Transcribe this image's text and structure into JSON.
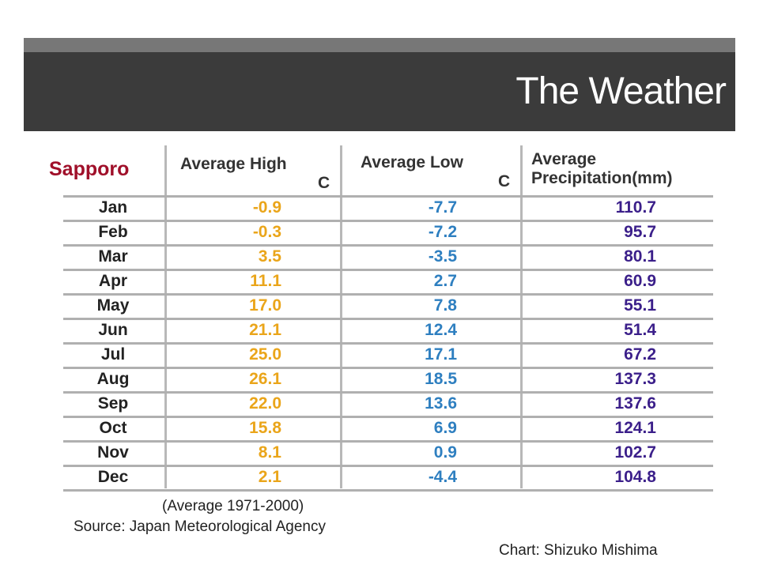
{
  "slide": {
    "title": "The Weather"
  },
  "chart_data": {
    "type": "table",
    "title": "Sapporo",
    "columns": [
      "Average High",
      "Average Low",
      "Average Precipitation(mm)"
    ],
    "unit_high": "C",
    "unit_low": "C",
    "rows": [
      {
        "month": "Jan",
        "high": "-0.9",
        "low": "-7.7",
        "precip": "110.7"
      },
      {
        "month": "Feb",
        "high": "-0.3",
        "low": "-7.2",
        "precip": "95.7"
      },
      {
        "month": "Mar",
        "high": "3.5",
        "low": "-3.5",
        "precip": "80.1"
      },
      {
        "month": "Apr",
        "high": "11.1",
        "low": "2.7",
        "precip": "60.9"
      },
      {
        "month": "May",
        "high": "17.0",
        "low": "7.8",
        "precip": "55.1"
      },
      {
        "month": "Jun",
        "high": "21.1",
        "low": "12.4",
        "precip": "51.4"
      },
      {
        "month": "Jul",
        "high": "25.0",
        "low": "17.1",
        "precip": "67.2"
      },
      {
        "month": "Aug",
        "high": "26.1",
        "low": "18.5",
        "precip": "137.3"
      },
      {
        "month": "Sep",
        "high": "22.0",
        "low": "13.6",
        "precip": "137.6"
      },
      {
        "month": "Oct",
        "high": "15.8",
        "low": "6.9",
        "precip": "124.1"
      },
      {
        "month": "Nov",
        "high": "8.1",
        "low": "0.9",
        "precip": "102.7"
      },
      {
        "month": "Dec",
        "high": "2.1",
        "low": "-4.4",
        "precip": "104.8"
      }
    ],
    "note": "(Average 1971-2000)",
    "source": "Source: Japan Meteorological Agency",
    "credit": "Chart: Shizuko Mishima",
    "colors": {
      "city": "#a0102a",
      "high": "#eaa51a",
      "low": "#2e7fc0",
      "precip": "#3b1f8a"
    }
  }
}
